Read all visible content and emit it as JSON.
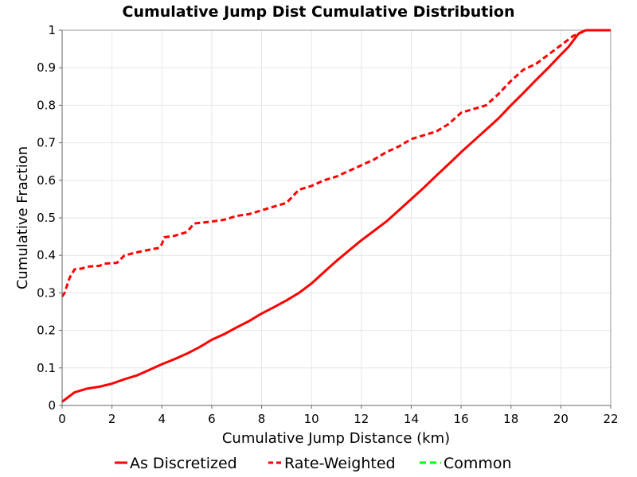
{
  "chart_data": {
    "type": "line",
    "title": "Cumulative Jump Dist Cumulative Distribution",
    "xlabel": "Cumulative Jump Distance (km)",
    "ylabel": "Cumulative Fraction",
    "xlim": [
      0,
      22
    ],
    "ylim": [
      0,
      1
    ],
    "xticks": [
      0,
      2,
      4,
      6,
      8,
      10,
      12,
      14,
      16,
      18,
      20,
      22
    ],
    "yticks": [
      0,
      0.1,
      0.2,
      0.3,
      0.4,
      0.5,
      0.6,
      0.7,
      0.8,
      0.9,
      1
    ],
    "grid": true,
    "legend_position": "bottom",
    "series": [
      {
        "name": "As Discretized",
        "color": "#ff0000",
        "dash": "solid",
        "x": [
          0,
          0.2,
          0.5,
          1,
          1.5,
          2,
          2.5,
          3,
          3.5,
          4,
          4.5,
          5,
          5.5,
          6,
          6.5,
          7,
          7.5,
          8,
          8.5,
          9,
          9.5,
          10,
          10.5,
          11,
          11.5,
          12,
          12.5,
          13,
          13.5,
          14,
          14.5,
          15,
          15.5,
          16,
          16.5,
          17,
          17.5,
          18,
          18.5,
          19,
          19.5,
          20,
          20.3,
          20.7,
          21,
          22
        ],
        "y": [
          0.01,
          0.02,
          0.035,
          0.045,
          0.05,
          0.058,
          0.07,
          0.08,
          0.095,
          0.11,
          0.123,
          0.138,
          0.155,
          0.175,
          0.19,
          0.208,
          0.225,
          0.245,
          0.262,
          0.28,
          0.3,
          0.325,
          0.355,
          0.385,
          0.413,
          0.44,
          0.465,
          0.49,
          0.52,
          0.55,
          0.58,
          0.612,
          0.643,
          0.675,
          0.705,
          0.735,
          0.765,
          0.8,
          0.833,
          0.867,
          0.9,
          0.935,
          0.955,
          0.99,
          1.0,
          1.0
        ]
      },
      {
        "name": "Rate-Weighted",
        "color": "#ff0000",
        "dash": "dashed",
        "x": [
          0,
          0.1,
          0.3,
          0.5,
          0.8,
          1,
          1.5,
          1.7,
          2.2,
          2.5,
          3,
          3.5,
          3.9,
          4,
          4.1,
          4.5,
          5,
          5.3,
          6,
          6.5,
          7,
          7.5,
          8,
          8.5,
          9,
          9.5,
          10,
          10.5,
          11,
          11.5,
          12,
          12.5,
          13,
          13.5,
          14,
          14.5,
          15,
          15.5,
          16,
          16.5,
          17,
          17.5,
          18,
          18.5,
          19,
          19.5,
          20,
          20.5,
          21,
          22
        ],
        "y": [
          0.29,
          0.3,
          0.34,
          0.363,
          0.365,
          0.37,
          0.372,
          0.378,
          0.38,
          0.4,
          0.408,
          0.415,
          0.42,
          0.43,
          0.448,
          0.452,
          0.462,
          0.485,
          0.49,
          0.495,
          0.505,
          0.51,
          0.52,
          0.53,
          0.54,
          0.575,
          0.585,
          0.6,
          0.61,
          0.625,
          0.64,
          0.655,
          0.675,
          0.69,
          0.71,
          0.72,
          0.73,
          0.75,
          0.78,
          0.79,
          0.8,
          0.83,
          0.865,
          0.895,
          0.91,
          0.935,
          0.96,
          0.985,
          1.0,
          1.0
        ]
      }
    ]
  },
  "legend": {
    "items": [
      {
        "label": "As Discretized",
        "color": "#ff0000",
        "dash": "solid"
      },
      {
        "label": "Rate-Weighted",
        "color": "#ff0000",
        "dash": "dashed"
      },
      {
        "label": "Common",
        "color": "#00ff00",
        "dash": "dashed"
      }
    ]
  }
}
